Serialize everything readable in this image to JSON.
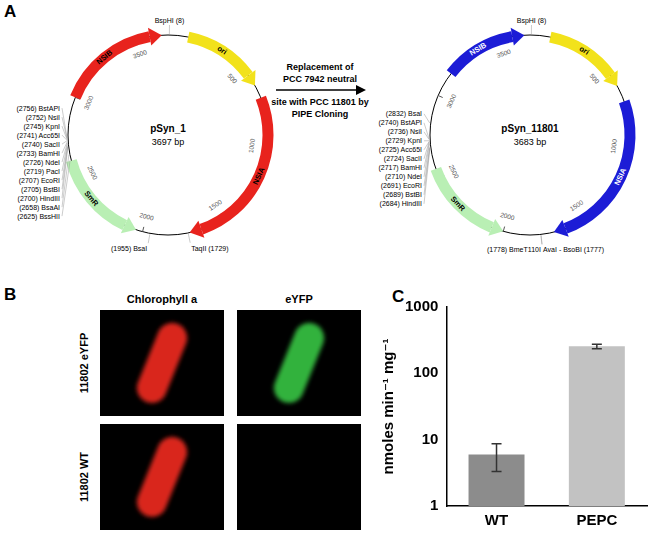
{
  "panel_letters": [
    "A",
    "B",
    "C"
  ],
  "panel_a": {
    "arrow_text": [
      "Replacement of",
      "PCC 7942 neutral",
      "site with PCC 11801 by",
      "PIPE Cloning"
    ],
    "plasmids": [
      {
        "name": "pSyn_1",
        "size_label": "3697 bp",
        "length": 3697,
        "ticks": [
          500,
          1000,
          1500,
          2000,
          2500,
          3000,
          3500
        ],
        "features": [
          {
            "name": "ori",
            "start": 120,
            "end": 620,
            "color": "#f2e21b"
          },
          {
            "name": "NSIA",
            "start": 700,
            "end": 1720,
            "color": "#e8231d"
          },
          {
            "name": "SmR",
            "start": 2620,
            "end": 2040,
            "color": "#b9efb4"
          },
          {
            "name": "NSIB",
            "start": 3000,
            "end": 3660,
            "color": "#e8231d"
          }
        ],
        "sites": [
          {
            "label": "BspHI (8)",
            "pos": 8
          },
          {
            "label": "(2756) BstAPI",
            "pos": 2756
          },
          {
            "label": "(2752) NsiI",
            "pos": 2752
          },
          {
            "label": "(2745) KpnI",
            "pos": 2745
          },
          {
            "label": "(2741) Acc65I",
            "pos": 2741
          },
          {
            "label": "(2740) SacII",
            "pos": 2740
          },
          {
            "label": "(2733) BamHI",
            "pos": 2733
          },
          {
            "label": "(2726) NdeI",
            "pos": 2726
          },
          {
            "label": "(2719) PacI",
            "pos": 2719
          },
          {
            "label": "(2707) EcoRI",
            "pos": 2707
          },
          {
            "label": "(2705) BstBI",
            "pos": 2705
          },
          {
            "label": "(2700) HindIII",
            "pos": 2700
          },
          {
            "label": "(2658) BsaAI",
            "pos": 2658
          },
          {
            "label": "(2625) BssHII",
            "pos": 2625
          },
          {
            "label": "(1955) BsaI",
            "pos": 1955
          },
          {
            "label": "TaqII (1729)",
            "pos": 1729
          }
        ]
      },
      {
        "name": "pSyn_11801",
        "size_label": "3683 bp",
        "length": 3683,
        "ticks": [
          500,
          1000,
          1500,
          2000,
          2500,
          3000,
          3500
        ],
        "features": [
          {
            "name": "ori",
            "start": 120,
            "end": 620,
            "color": "#f2e21b"
          },
          {
            "name": "NSIA",
            "start": 720,
            "end": 1700,
            "color": "#1c1cd6"
          },
          {
            "name": "SmR",
            "start": 2560,
            "end": 2000,
            "color": "#b9efb4"
          },
          {
            "name": "NSIB",
            "start": 3150,
            "end": 3650,
            "color": "#1c1cd6"
          }
        ],
        "sites": [
          {
            "label": "BspHI (8)",
            "pos": 8
          },
          {
            "label": "(2832) BsaI",
            "pos": 2832
          },
          {
            "label": "(2740) BstAPI",
            "pos": 2740
          },
          {
            "label": "(2736) NsiI",
            "pos": 2736
          },
          {
            "label": "(2729) KpnI",
            "pos": 2729
          },
          {
            "label": "(2725) Acc65I",
            "pos": 2725
          },
          {
            "label": "(2724) SacII",
            "pos": 2724
          },
          {
            "label": "(2717) BamHI",
            "pos": 2717
          },
          {
            "label": "(2710) NdeI",
            "pos": 2710
          },
          {
            "label": "(2691) EcoRI",
            "pos": 2691
          },
          {
            "label": "(2689) BstBI",
            "pos": 2689
          },
          {
            "label": "(2684) HindIII",
            "pos": 2684
          },
          {
            "label": "(1778) BmeT110I",
            "pos": 1778
          },
          {
            "label": "AvaI - BsoBI (1777)",
            "pos": 1777
          }
        ]
      }
    ]
  },
  "panel_b": {
    "columns": [
      "Chlorophyll a",
      "eYFP"
    ],
    "rows": [
      {
        "label": "11802 eYFP",
        "channels": [
          "#d9261f",
          "#33b23c"
        ]
      },
      {
        "label": "11802 WT",
        "channels": [
          "#d9261f",
          null
        ]
      }
    ]
  },
  "chart_data": {
    "type": "bar",
    "categories": [
      "WT",
      "PEPC"
    ],
    "values": [
      6,
      255
    ],
    "errors": [
      2.7,
      20
    ],
    "colors": [
      "#8c8c8c",
      "#c2c2c2"
    ],
    "y_label": "nmoles min⁻¹ mg⁻¹",
    "log": "y",
    "ylim": [
      1,
      1000
    ],
    "yticks": [
      1,
      10,
      100,
      1000
    ],
    "grid": false
  }
}
